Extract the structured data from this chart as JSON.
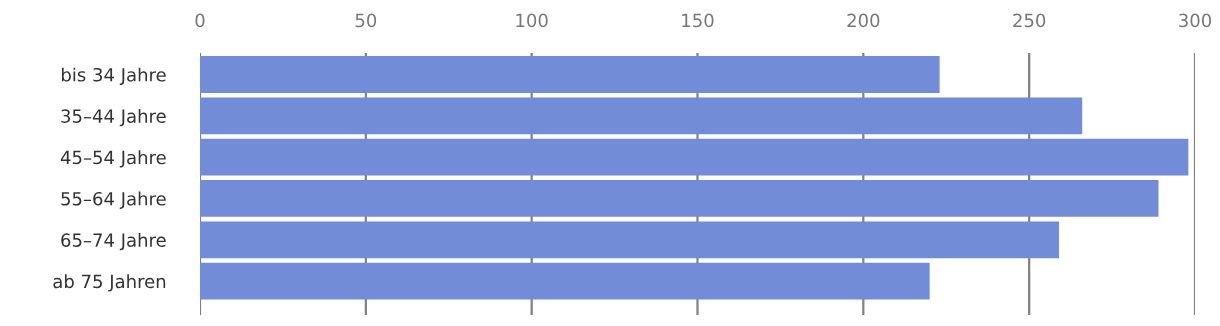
{
  "chart_data": {
    "type": "bar",
    "orientation": "horizontal",
    "categories": [
      "bis 34 Jahre",
      "35–44 Jahre",
      "45–54 Jahre",
      "55–64 Jahre",
      "65–74 Jahre",
      "ab 75 Jahren"
    ],
    "series": [
      {
        "color": "#728cd8",
        "values": [
          223,
          266,
          298,
          289,
          259,
          220
        ]
      }
    ],
    "xlim": [
      0,
      300
    ],
    "xticks": [
      0,
      50,
      100,
      150,
      200,
      250,
      300
    ],
    "grid": "x",
    "legend": false
  }
}
